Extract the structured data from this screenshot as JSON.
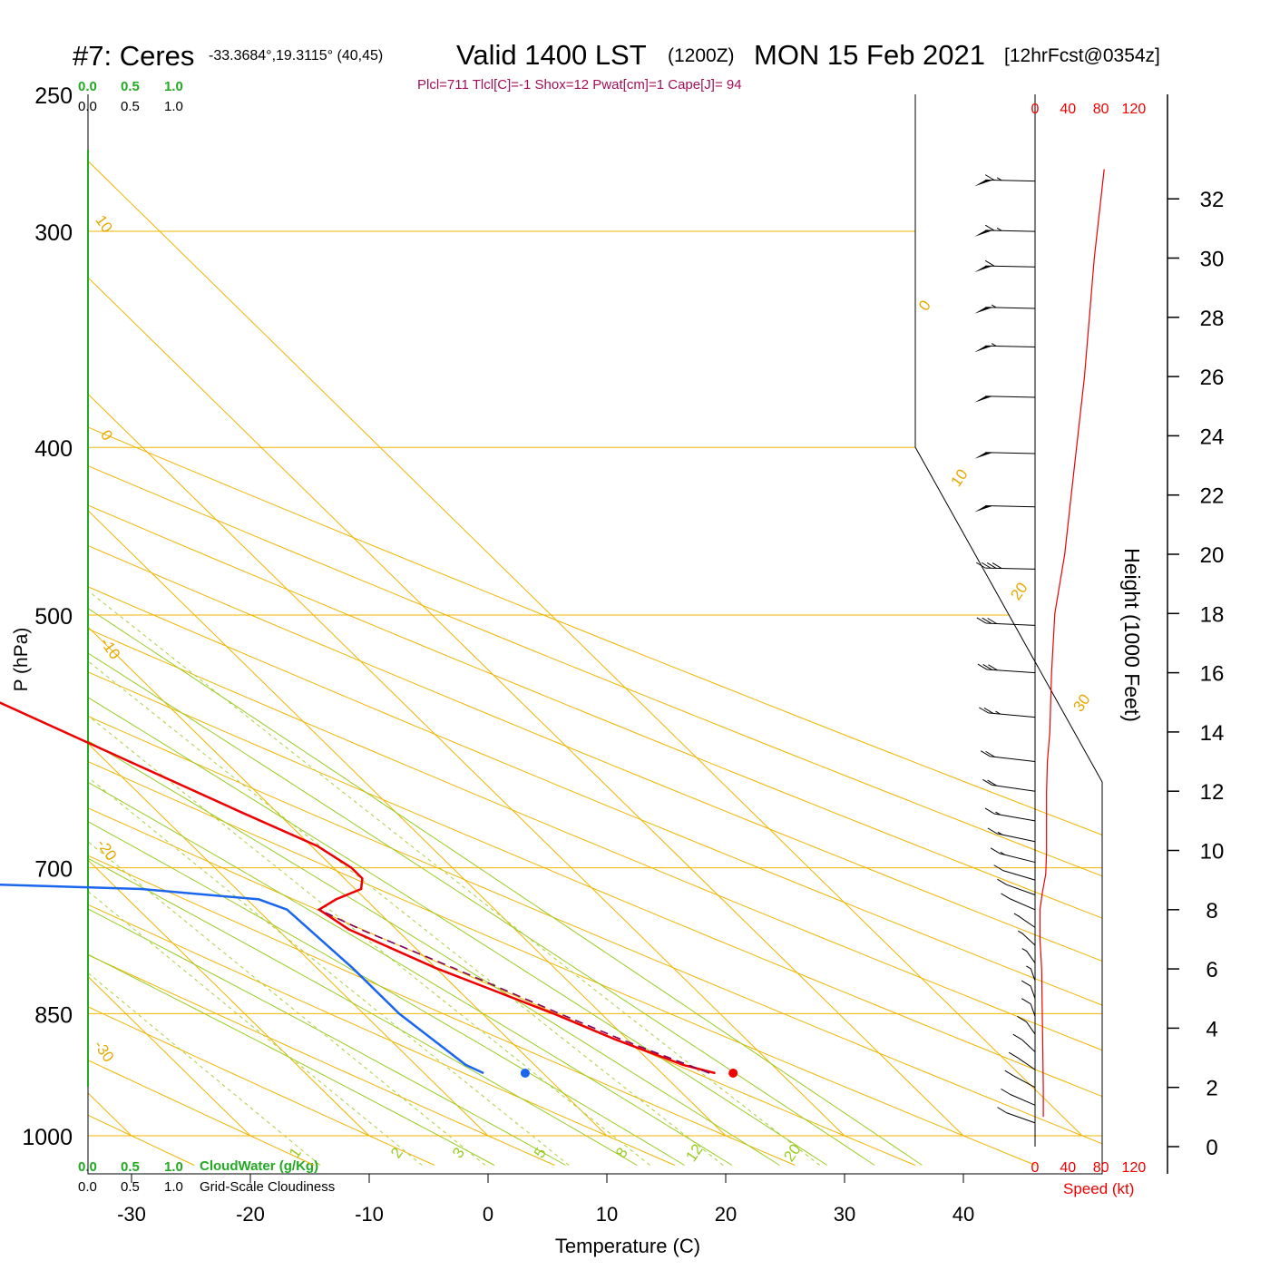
{
  "header": {
    "station": "#7: Ceres",
    "location": "-33.3684°,19.3115° (40,45)",
    "valid": "Valid 1400 LST",
    "zulu": "(1200Z)",
    "date": "MON 15 Feb 2021",
    "forecast": "[12hrFcst@0354z]",
    "indices": "Plcl=711 Tlcl[C]=-1 Shox=12 Pwat[cm]=1 Cape[J]= 94"
  },
  "legend": {
    "scale_top_green": [
      "0.0",
      "0.5",
      "1.0"
    ],
    "scale_top_black": [
      "0.0",
      "0.5",
      "1.0"
    ],
    "scale_bottom_green": [
      "0.0",
      "0.5",
      "1.0"
    ],
    "scale_bottom_black": [
      "0.0",
      "0.5",
      "1.0"
    ],
    "cloud_water_label": "CloudWater (g/Kg)",
    "cloudiness_label": "Grid-Scale Cloudiness"
  },
  "colors": {
    "temperature": "#ee0000",
    "dewpoint": "#1a66ee",
    "parcel": "#800060",
    "isotherm": "#f0b400",
    "dry_adiabat": "#f0b400",
    "moist_adiabat": "#99cc22",
    "mixing_ratio": "#aad040",
    "wind_speed": "#ee0000"
  },
  "chart_data": {
    "type": "skewt",
    "xlabel": "Temperature (C)",
    "ylabel": "P (hPa)",
    "xlim": [
      -34,
      36
    ],
    "ylim": [
      1000,
      250
    ],
    "x_ticks": [
      "-30",
      "-20",
      "-10",
      "0",
      "10",
      "20",
      "30",
      "40"
    ],
    "x_tick_values": [
      -30,
      -20,
      -10,
      0,
      10,
      20,
      30,
      40
    ],
    "pressure_ticks": [
      "250",
      "300",
      "400",
      "500",
      "700",
      "850",
      "1000"
    ],
    "pressure_tick_values": [
      250,
      300,
      400,
      500,
      700,
      850,
      1000
    ],
    "height_axis": {
      "label": "Height (1000 Feet)",
      "ticks": [
        "0",
        "2",
        "4",
        "6",
        "8",
        "10",
        "12",
        "14",
        "16",
        "18",
        "20",
        "22",
        "24",
        "26",
        "28",
        "30",
        "32"
      ],
      "values_kft": [
        0,
        2,
        4,
        6,
        8,
        10,
        12,
        14,
        16,
        18,
        20,
        22,
        24,
        26,
        28,
        30,
        32
      ]
    },
    "wind_speed_axis": {
      "label": "Speed (kt)",
      "ticks": [
        "0",
        "40",
        "80",
        "120"
      ],
      "values": [
        0,
        40,
        80,
        120
      ]
    },
    "dry_adiabat_labels": [
      "10",
      "0",
      "-10",
      "-20",
      "-30",
      "0",
      "10",
      "20",
      "30"
    ],
    "dry_adiabat_label_values": [
      10,
      0,
      -10,
      -20,
      -30,
      0,
      10,
      20,
      30
    ],
    "moist_adiabat_labels": [
      "1",
      "2",
      "3",
      "5",
      "8",
      "12",
      "20"
    ],
    "moist_adiabat_label_values": [
      1,
      2,
      3,
      5,
      8,
      12,
      20
    ],
    "temperature_profile": [
      {
        "p": 920,
        "t": 24.5
      },
      {
        "p": 910,
        "t": 22.5
      },
      {
        "p": 880,
        "t": 19.0
      },
      {
        "p": 850,
        "t": 16.0
      },
      {
        "p": 800,
        "t": 10.0
      },
      {
        "p": 760,
        "t": 6.0
      },
      {
        "p": 740,
        "t": 5.2
      },
      {
        "p": 730,
        "t": 7.5
      },
      {
        "p": 720,
        "t": 10.5
      },
      {
        "p": 710,
        "t": 11.5
      },
      {
        "p": 700,
        "t": 11.5
      },
      {
        "p": 680,
        "t": 10.5
      },
      {
        "p": 650,
        "t": 7.0
      },
      {
        "p": 600,
        "t": 1.0
      },
      {
        "p": 550,
        "t": -5.5
      },
      {
        "p": 500,
        "t": -12.0
      },
      {
        "p": 450,
        "t": -19.0
      },
      {
        "p": 420,
        "t": -24.0
      },
      {
        "p": 400,
        "t": -27.5
      },
      {
        "p": 350,
        "t": -36.5
      },
      {
        "p": 320,
        "t": -43.0
      },
      {
        "p": 300,
        "t": -46.5
      },
      {
        "p": 280,
        "t": -49.5
      },
      {
        "p": 265,
        "t": -51.0
      }
    ],
    "dewpoint_profile": [
      {
        "p": 920,
        "t": 5.0
      },
      {
        "p": 910,
        "t": 4.2
      },
      {
        "p": 850,
        "t": 3.0
      },
      {
        "p": 800,
        "t": 3.0
      },
      {
        "p": 740,
        "t": 2.5
      },
      {
        "p": 730,
        "t": 1.0
      },
      {
        "p": 720,
        "t": -8.0
      },
      {
        "p": 700,
        "t": -64.0
      },
      {
        "p": 680,
        "t": -40.0
      },
      {
        "p": 650,
        "t": -33.0
      },
      {
        "p": 620,
        "t": -29.0
      },
      {
        "p": 600,
        "t": -27.0
      },
      {
        "p": 570,
        "t": -27.5
      },
      {
        "p": 550,
        "t": -29.0
      },
      {
        "p": 500,
        "t": -35.0
      },
      {
        "p": 450,
        "t": -43.0
      },
      {
        "p": 440,
        "t": -47.0
      },
      {
        "p": 400,
        "t": -45.0
      },
      {
        "p": 350,
        "t": -41.0
      },
      {
        "p": 330,
        "t": -41.0
      },
      {
        "p": 300,
        "t": -44.0
      },
      {
        "p": 265,
        "t": -52.0
      }
    ],
    "parcel_profile": [
      {
        "p": 920,
        "t": 24.0
      },
      {
        "p": 880,
        "t": 19.5
      },
      {
        "p": 850,
        "t": 16.5
      },
      {
        "p": 800,
        "t": 11.5
      },
      {
        "p": 760,
        "t": 7.0
      },
      {
        "p": 740,
        "t": 5.2
      }
    ],
    "surface_temperature": {
      "p": 920,
      "t": 26.0
    },
    "surface_dewpoint": {
      "p": 920,
      "t": 8.5
    },
    "wind_speed_profile": [
      {
        "kft": 1.0,
        "kt": 10
      },
      {
        "kft": 2.0,
        "kt": 10
      },
      {
        "kft": 4.0,
        "kt": 9
      },
      {
        "kft": 6.0,
        "kt": 8
      },
      {
        "kft": 7.0,
        "kt": 6
      },
      {
        "kft": 8.0,
        "kt": 6
      },
      {
        "kft": 8.6,
        "kt": 9
      },
      {
        "kft": 9.2,
        "kt": 13
      },
      {
        "kft": 10.0,
        "kt": 14
      },
      {
        "kft": 12.0,
        "kt": 14
      },
      {
        "kft": 13.0,
        "kt": 15
      },
      {
        "kft": 14.0,
        "kt": 18
      },
      {
        "kft": 16.0,
        "kt": 20
      },
      {
        "kft": 18.0,
        "kt": 24
      },
      {
        "kft": 20.0,
        "kt": 36
      },
      {
        "kft": 22.0,
        "kt": 44
      },
      {
        "kft": 24.0,
        "kt": 52
      },
      {
        "kft": 26.0,
        "kt": 60
      },
      {
        "kft": 28.0,
        "kt": 66
      },
      {
        "kft": 30.0,
        "kt": 72
      },
      {
        "kft": 32.0,
        "kt": 80
      },
      {
        "kft": 33.0,
        "kt": 84
      }
    ],
    "wind_barbs": [
      {
        "kft": 32.6,
        "speed_kt": 65,
        "dir_deg": 275
      },
      {
        "kft": 30.9,
        "speed_kt": 65,
        "dir_deg": 275
      },
      {
        "kft": 29.7,
        "speed_kt": 60,
        "dir_deg": 275
      },
      {
        "kft": 28.3,
        "speed_kt": 55,
        "dir_deg": 275
      },
      {
        "kft": 27.0,
        "speed_kt": 55,
        "dir_deg": 275
      },
      {
        "kft": 25.3,
        "speed_kt": 50,
        "dir_deg": 275
      },
      {
        "kft": 23.4,
        "speed_kt": 50,
        "dir_deg": 275
      },
      {
        "kft": 21.6,
        "speed_kt": 50,
        "dir_deg": 275
      },
      {
        "kft": 19.5,
        "speed_kt": 40,
        "dir_deg": 275
      },
      {
        "kft": 17.6,
        "speed_kt": 30,
        "dir_deg": 280
      },
      {
        "kft": 16.0,
        "speed_kt": 30,
        "dir_deg": 285
      },
      {
        "kft": 14.5,
        "speed_kt": 25,
        "dir_deg": 290
      },
      {
        "kft": 13.0,
        "speed_kt": 20,
        "dir_deg": 295
      },
      {
        "kft": 12.0,
        "speed_kt": 20,
        "dir_deg": 300
      },
      {
        "kft": 11.0,
        "speed_kt": 15,
        "dir_deg": 305
      },
      {
        "kft": 10.3,
        "speed_kt": 15,
        "dir_deg": 310
      },
      {
        "kft": 9.6,
        "speed_kt": 15,
        "dir_deg": 315
      },
      {
        "kft": 9.0,
        "speed_kt": 10,
        "dir_deg": 320
      },
      {
        "kft": 8.5,
        "speed_kt": 10,
        "dir_deg": 325
      },
      {
        "kft": 8.0,
        "speed_kt": 10,
        "dir_deg": 330
      },
      {
        "kft": 7.4,
        "speed_kt": 5,
        "dir_deg": 340
      },
      {
        "kft": 6.8,
        "speed_kt": 5,
        "dir_deg": 345
      },
      {
        "kft": 6.2,
        "speed_kt": 5,
        "dir_deg": 350
      },
      {
        "kft": 5.6,
        "speed_kt": 5,
        "dir_deg": 355
      },
      {
        "kft": 5.0,
        "speed_kt": 10,
        "dir_deg": 355
      },
      {
        "kft": 4.4,
        "speed_kt": 10,
        "dir_deg": 355
      },
      {
        "kft": 3.8,
        "speed_kt": 10,
        "dir_deg": 350
      },
      {
        "kft": 3.2,
        "speed_kt": 10,
        "dir_deg": 345
      },
      {
        "kft": 2.6,
        "speed_kt": 10,
        "dir_deg": 340
      },
      {
        "kft": 2.0,
        "speed_kt": 10,
        "dir_deg": 335
      },
      {
        "kft": 1.4,
        "speed_kt": 10,
        "dir_deg": 330
      },
      {
        "kft": 0.8,
        "speed_kt": 10,
        "dir_deg": 325
      }
    ]
  }
}
